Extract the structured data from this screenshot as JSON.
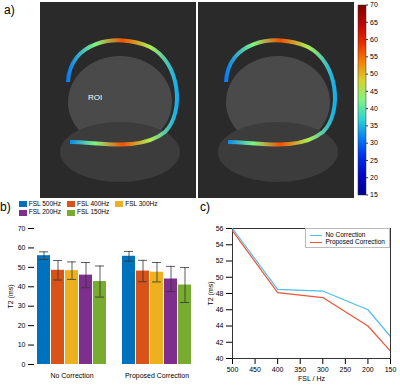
{
  "chart_data": [
    {
      "type": "image",
      "panel_label": "a)",
      "annotation": "ROI",
      "colorbar": {
        "range": [
          15,
          70
        ],
        "ticks": [
          15,
          20,
          25,
          30,
          35,
          40,
          45,
          50,
          55,
          60,
          65,
          70
        ]
      }
    },
    {
      "type": "bar",
      "panel_label": "b)",
      "categories": [
        "No Correction",
        "Proposed Correction"
      ],
      "ylabel": "T2 (ms)",
      "ylim": [
        0,
        70
      ],
      "yticks": [
        0,
        10,
        20,
        30,
        40,
        50,
        60,
        70
      ],
      "legend": "top",
      "series": [
        {
          "name": "FSL 500Hz",
          "color": "#0072bd",
          "values": [
            56,
            55.7
          ],
          "errors": [
            2,
            2.5
          ]
        },
        {
          "name": "FSL 400Hz",
          "color": "#d95319",
          "values": [
            48.5,
            48.1
          ],
          "errors": [
            5,
            5.5
          ]
        },
        {
          "name": "FSL 300Hz",
          "color": "#edb120",
          "values": [
            48.3,
            47.5
          ],
          "errors": [
            4.5,
            5
          ]
        },
        {
          "name": "FSL 200Hz",
          "color": "#7e2f8e",
          "values": [
            46,
            44
          ],
          "errors": [
            6.5,
            6.5
          ]
        },
        {
          "name": "FSL 150Hz",
          "color": "#77ac30",
          "values": [
            42.7,
            40.9
          ],
          "errors": [
            8,
            9
          ]
        }
      ]
    },
    {
      "type": "line",
      "panel_label": "c)",
      "xlabel": "FSL / Hz",
      "ylabel": "T2 (ms)",
      "x": [
        500,
        400,
        300,
        200,
        150
      ],
      "xlim": [
        500,
        150
      ],
      "xticks": [
        500,
        450,
        400,
        350,
        300,
        250,
        200,
        150
      ],
      "ylim": [
        40,
        56
      ],
      "yticks": [
        40,
        42,
        44,
        46,
        48,
        50,
        52,
        54,
        56
      ],
      "legend": "top-right",
      "series": [
        {
          "name": "No Correction",
          "color": "#4dbeee",
          "values": [
            56,
            48.5,
            48.3,
            46,
            42.7
          ]
        },
        {
          "name": "Proposed Correction",
          "color": "#e8553a",
          "values": [
            55.7,
            48.1,
            47.5,
            44,
            40.9
          ]
        }
      ]
    }
  ]
}
